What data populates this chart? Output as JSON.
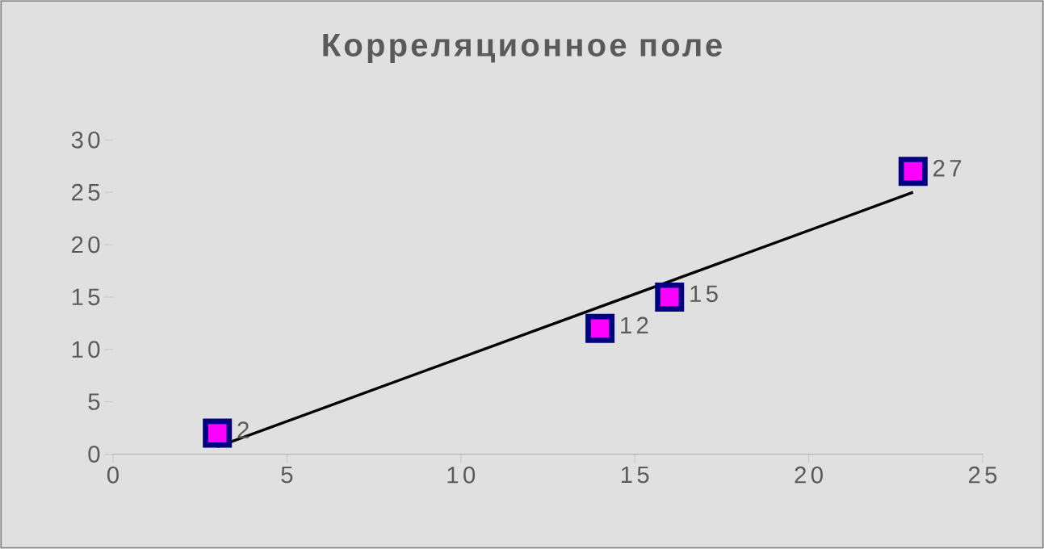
{
  "chart_data": {
    "type": "scatter",
    "title": "Корреляционное поле",
    "x": [
      3,
      14,
      16,
      23
    ],
    "series": [
      {
        "color": "#ff00ff",
        "values": [
          2,
          12,
          15,
          27
        ],
        "value_labels": [
          "2",
          "12",
          "15",
          "27"
        ],
        "marker": "square"
      },
      {
        "type": "line",
        "color": "#000000",
        "x": [
          3,
          23
        ],
        "values": [
          0.7,
          25
        ],
        "marker": "none",
        "line_style": "solid"
      }
    ],
    "xlim": [
      0,
      25
    ],
    "ylim": [
      0,
      30
    ],
    "xticks": [
      0,
      5,
      10,
      15,
      20,
      25
    ],
    "yticks": [
      0,
      5,
      10,
      15,
      20,
      25,
      30
    ],
    "grid": false
  }
}
